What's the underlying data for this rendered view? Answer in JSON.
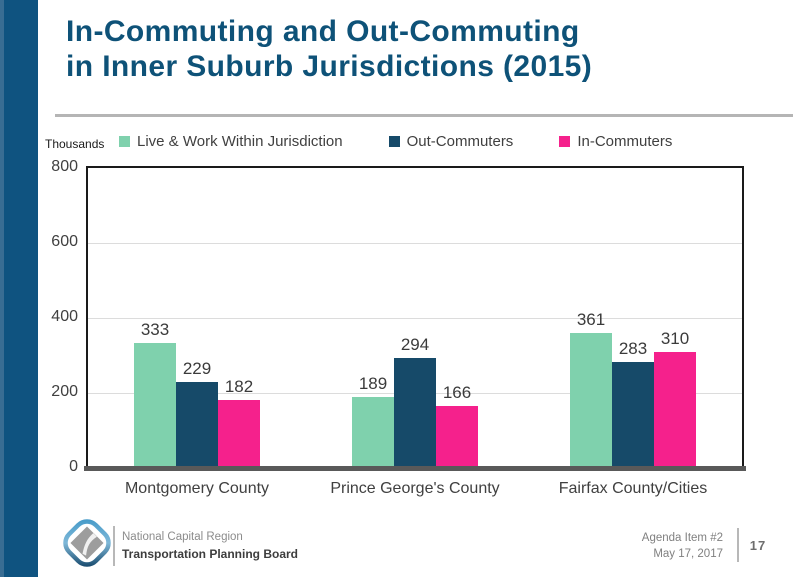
{
  "slide": {
    "title_line1": "In-Commuting and Out-Commuting",
    "title_line2": "in Inner Suburb Jurisdictions (2015)"
  },
  "chart_data": {
    "type": "bar",
    "title": "In-Commuting and Out-Commuting in Inner Suburb Jurisdictions (2015)",
    "unit_label": "Thousands",
    "categories": [
      "Montgomery County",
      "Prince George's County",
      "Fairfax County/Cities"
    ],
    "series": [
      {
        "name": "Live & Work Within Jurisdiction",
        "color": "#7fd1ad",
        "values": [
          333,
          189,
          361
        ]
      },
      {
        "name": "Out-Commuters",
        "color": "#164a69",
        "values": [
          229,
          294,
          283
        ]
      },
      {
        "name": "In-Commuters",
        "color": "#f5218c",
        "values": [
          182,
          166,
          310
        ]
      }
    ],
    "ylim": [
      0,
      800
    ],
    "yticks": [
      0,
      200,
      400,
      600,
      800
    ],
    "grid": true,
    "legend_position": "top"
  },
  "footer": {
    "org_line1": "National Capital Region",
    "org_line2": "Transportation Planning Board",
    "agenda_line1": "Agenda Item #2",
    "agenda_line2": "May 17, 2017",
    "page_number": "17"
  },
  "colors": {
    "accent_blue": "#0f5380",
    "title_blue": "#0e5278",
    "baseline_gray": "#595959",
    "grid_gray": "#dcdcdc"
  }
}
